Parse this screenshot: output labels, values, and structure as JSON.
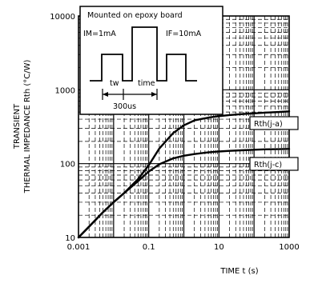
{
  "chart_data": {
    "type": "line",
    "title": "",
    "xlabel": "TIME t (s)",
    "ylabel_line1": "TRANSIENT",
    "ylabel_line2": "THERMAL IMPEDANCE Rth (°C/W)",
    "xscale": "log",
    "yscale": "log",
    "xlim": [
      0.001,
      1000
    ],
    "ylim": [
      10,
      10000
    ],
    "x_ticks": [
      0.001,
      0.1,
      10,
      1000
    ],
    "x_tick_labels": [
      "0.001",
      "0.1",
      "10",
      "1000"
    ],
    "y_ticks": [
      10,
      100,
      1000,
      10000
    ],
    "y_tick_labels": [
      "10",
      "100",
      "1000",
      "10000"
    ],
    "grid": true,
    "series": [
      {
        "name": "Rth(j-a)",
        "x": [
          0.001,
          0.002,
          0.005,
          0.01,
          0.02,
          0.05,
          0.1,
          0.2,
          0.5,
          1,
          2,
          5,
          10,
          20,
          50,
          100,
          200,
          500,
          1000
        ],
        "y": [
          10,
          14,
          22,
          30,
          40,
          62,
          95,
          160,
          260,
          330,
          385,
          420,
          440,
          455,
          470,
          480,
          490,
          500,
          510
        ]
      },
      {
        "name": "Rth(j-c)",
        "x": [
          0.001,
          0.002,
          0.005,
          0.01,
          0.02,
          0.05,
          0.1,
          0.2,
          0.5,
          1,
          2,
          5,
          10,
          20,
          50,
          100,
          200,
          500,
          1000
        ],
        "y": [
          10,
          14,
          22,
          30,
          40,
          58,
          78,
          98,
          118,
          128,
          135,
          142,
          146,
          149,
          152,
          154,
          156,
          157,
          158
        ]
      }
    ],
    "annotations": {
      "inset_title": "Mounted on epoxy board",
      "im_label": "IM=1mA",
      "if_label": "IF=10mA",
      "tw_label": "tw",
      "time_label": "time",
      "duration_label": "300us"
    }
  }
}
